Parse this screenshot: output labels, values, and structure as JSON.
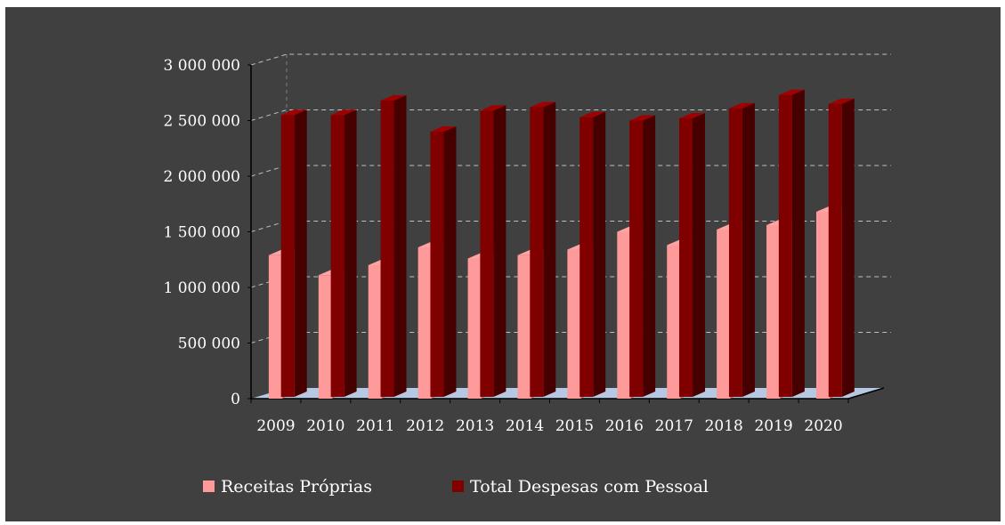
{
  "chart_data": {
    "type": "bar",
    "categories": [
      "2009",
      "2010",
      "2011",
      "2012",
      "2013",
      "2014",
      "2015",
      "2016",
      "2017",
      "2018",
      "2019",
      "2020"
    ],
    "series": [
      {
        "name": "Receitas Próprias",
        "color": "#ff9a9a",
        "values": [
          1290000,
          1110000,
          1200000,
          1360000,
          1260000,
          1290000,
          1340000,
          1500000,
          1380000,
          1520000,
          1560000,
          1680000
        ]
      },
      {
        "name": "Total Despesas com Pessoal",
        "color": "#800000",
        "values": [
          2550000,
          2550000,
          2680000,
          2400000,
          2590000,
          2620000,
          2530000,
          2500000,
          2520000,
          2610000,
          2730000,
          2650000
        ]
      }
    ],
    "ylim": [
      0,
      3000000
    ],
    "yticks": [
      0,
      500000,
      1000000,
      1500000,
      2000000,
      2500000,
      3000000
    ],
    "ytick_labels": [
      "0",
      "500 000",
      "1 000 000",
      "1 500 000",
      "2 000 000",
      "2 500 000",
      "3 000 000"
    ],
    "grid": true,
    "legend_position": "bottom",
    "background": "#404040",
    "floor_color": "#b7c9e2",
    "style": "3d-clustered-column"
  }
}
